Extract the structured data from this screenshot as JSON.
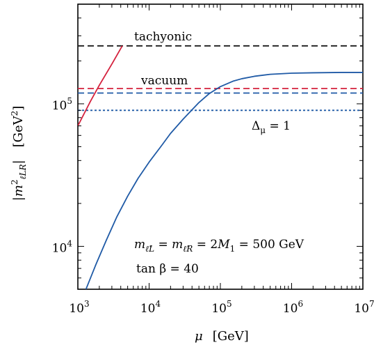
{
  "chart_data": {
    "type": "line",
    "xscale": "log",
    "yscale": "log",
    "xlim": [
      1000,
      10000000
    ],
    "ylim": [
      5000,
      500000
    ],
    "xlabel": "μ   [GeV]",
    "ylabel": "|m²ℓLR|   [GeV²]",
    "x_ticks": [
      {
        "base": "10",
        "exp": "3",
        "value": 1000
      },
      {
        "base": "10",
        "exp": "4",
        "value": 10000
      },
      {
        "base": "10",
        "exp": "5",
        "value": 100000
      },
      {
        "base": "10",
        "exp": "6",
        "value": 1000000
      },
      {
        "base": "10",
        "exp": "7",
        "value": 10000000
      }
    ],
    "y_ticks": [
      {
        "base": "10",
        "exp": "4",
        "value": 10000
      },
      {
        "base": "10",
        "exp": "5",
        "value": 100000
      }
    ],
    "series": [
      {
        "color": "#1f5aa6",
        "style": "solid",
        "x": [
          1300,
          1800,
          2500,
          3500,
          5000,
          7000,
          10000,
          15000,
          20000,
          30000,
          50000,
          70000,
          100000,
          150000,
          200000,
          300000,
          500000,
          1000000,
          2000000,
          5000000,
          10000000
        ],
        "y": [
          5000,
          7500,
          11000,
          16000,
          22500,
          30000,
          39000,
          51000,
          62000,
          78000,
          102000,
          118000,
          132000,
          144000,
          150000,
          156000,
          161000,
          164000,
          165000,
          166000,
          166000
        ]
      },
      {
        "color": "#d4213d",
        "style": "solid",
        "x": [
          1000,
          1500,
          2000,
          3000,
          4200
        ],
        "y": [
          70000,
          104000,
          135000,
          190000,
          255000
        ]
      }
    ],
    "hlines": [
      {
        "name": "tachyonic",
        "y": 255000,
        "color": "#1a1a1a",
        "style": "dashed"
      },
      {
        "name": "vacuum",
        "y": 128000,
        "color": "#d4213d",
        "style": "dashed"
      },
      {
        "y": 119000,
        "color": "#1f5aa6",
        "style": "dashed"
      },
      {
        "name": "Δμ = 1",
        "y": 90000,
        "color": "#1f5aa6",
        "style": "dotted"
      }
    ],
    "annotations": {
      "tachyonic": "tachyonic",
      "vacuum": "vacuum",
      "delta": "Δμ = 1",
      "masses": "mℓ̃L = mℓ̃R = 2M1 = 500 GeV",
      "tanbeta": "tan β = 40"
    }
  }
}
